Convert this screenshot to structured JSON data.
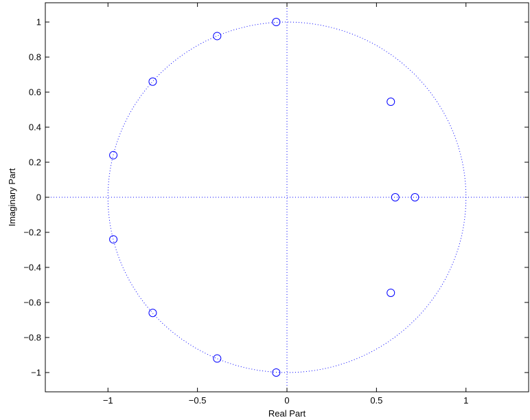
{
  "chart_data": {
    "type": "scatter",
    "title": "",
    "xlabel": "Real Part",
    "ylabel": "Imaginary Part",
    "xlim": [
      -1.35,
      1.35
    ],
    "ylim": [
      -1.11,
      1.11
    ],
    "xticks": [
      -1,
      -0.5,
      0,
      0.5,
      1
    ],
    "xtick_labels": [
      "−1",
      "−0.5",
      "0",
      "0.5",
      "1"
    ],
    "yticks": [
      1,
      0.8,
      0.6,
      0.4,
      0.2,
      0,
      -0.2,
      -0.4,
      -0.6,
      -0.8,
      -1
    ],
    "ytick_labels": [
      "1",
      "0.8",
      "0.6",
      "0.4",
      "0.2",
      "0",
      "−0.2",
      "−0.4",
      "−0.6",
      "−0.8",
      "−1"
    ],
    "marker": "circle-open",
    "marker_color": "#0000ff",
    "guide_color": "#0000ff",
    "unit_circle": true,
    "grid": false,
    "points": [
      {
        "x": -0.06,
        "y": 1.0
      },
      {
        "x": -0.39,
        "y": 0.92
      },
      {
        "x": -0.75,
        "y": 0.66
      },
      {
        "x": -0.97,
        "y": 0.24
      },
      {
        "x": -0.97,
        "y": -0.24
      },
      {
        "x": -0.75,
        "y": -0.66
      },
      {
        "x": -0.39,
        "y": -0.92
      },
      {
        "x": -0.06,
        "y": -1.0
      },
      {
        "x": 0.58,
        "y": 0.545
      },
      {
        "x": 0.58,
        "y": -0.545
      },
      {
        "x": 0.605,
        "y": 0.0
      },
      {
        "x": 0.715,
        "y": 0.0
      }
    ]
  }
}
